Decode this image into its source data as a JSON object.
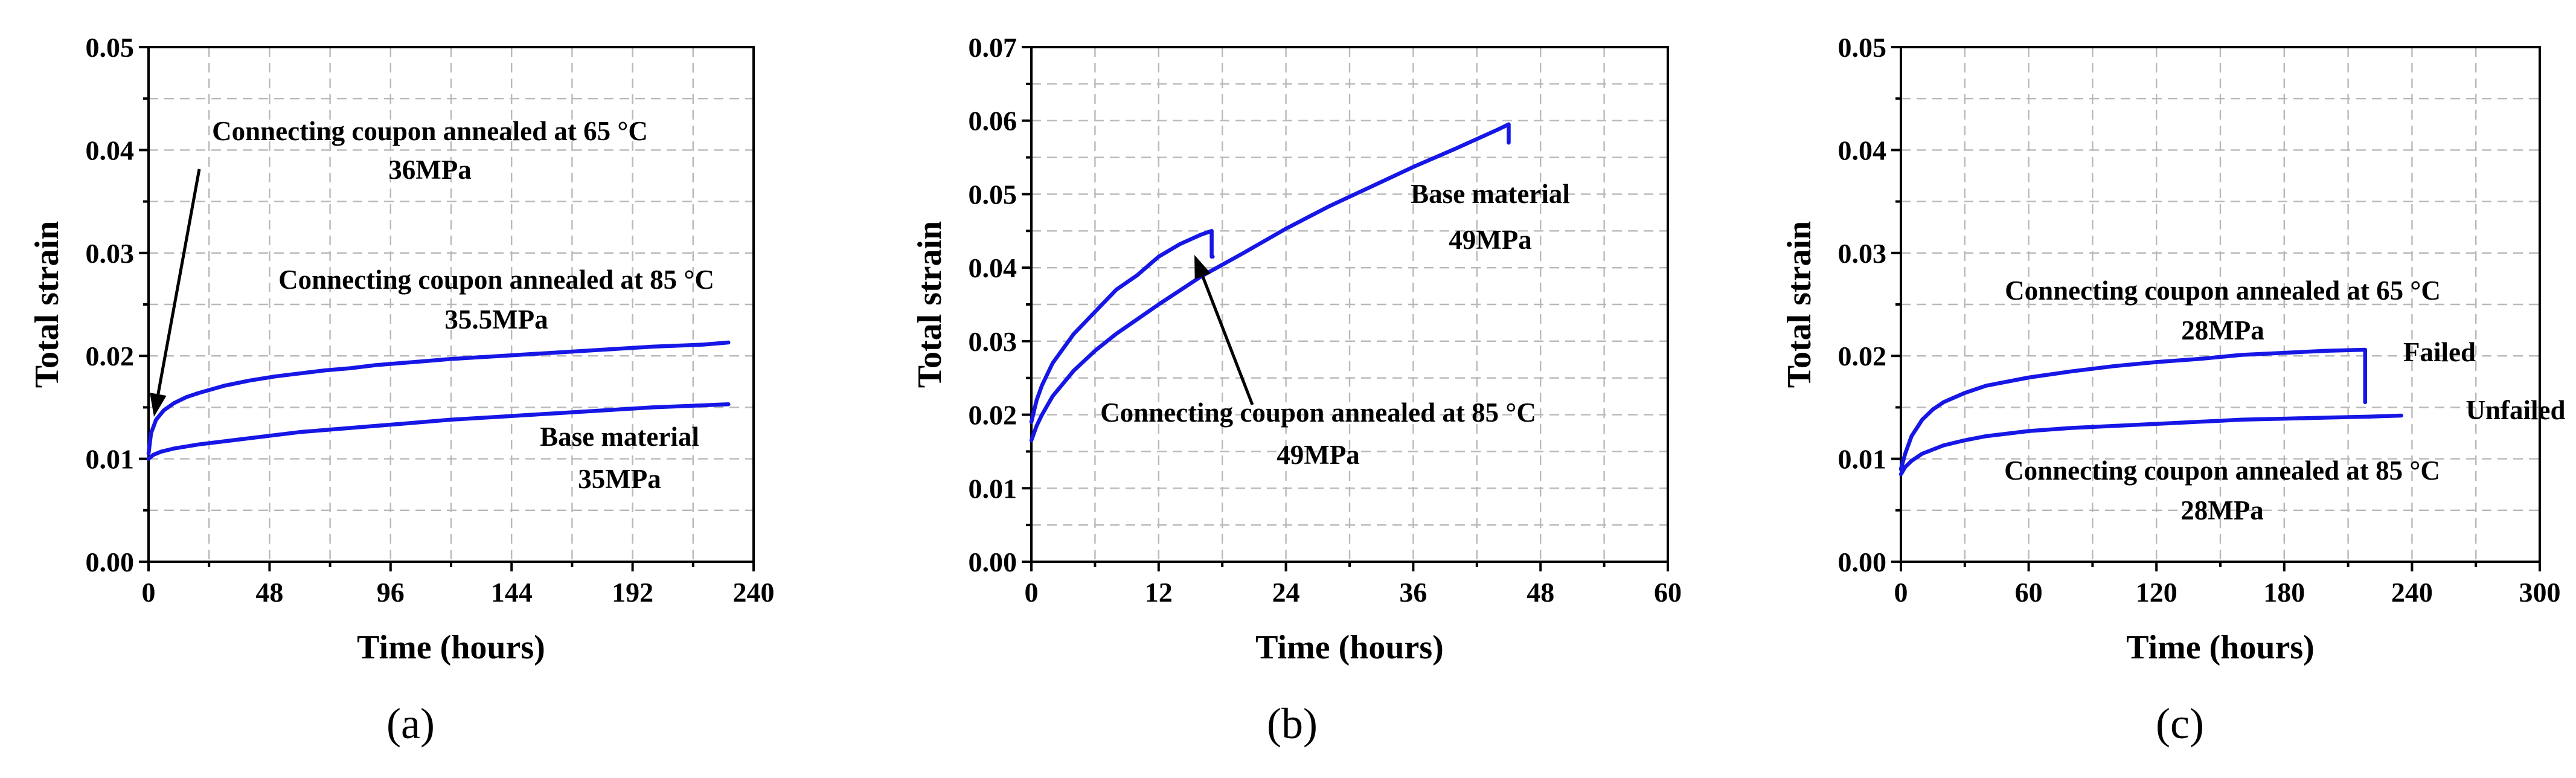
{
  "chart_data": [
    {
      "type": "line",
      "panel_label": "(a)",
      "xlabel": "Time (hours)",
      "ylabel": "Total strain",
      "xlim": [
        0,
        240
      ],
      "ylim": [
        0,
        0.05
      ],
      "xticks": [
        0,
        48,
        96,
        144,
        192,
        240
      ],
      "yticks": [
        0.0,
        0.01,
        0.02,
        0.03,
        0.04,
        0.05
      ],
      "ytick_labels": [
        "0.00",
        "0.01",
        "0.02",
        "0.03",
        "0.04",
        "0.05"
      ],
      "series": [
        {
          "name": "Connecting coupon annealed at 85 °C",
          "x": [
            0,
            1,
            3,
            6,
            10,
            15,
            20,
            30,
            40,
            50,
            60,
            70,
            80,
            90,
            100,
            110,
            120,
            140,
            160,
            180,
            200,
            220,
            230
          ],
          "y": [
            0.0105,
            0.0125,
            0.0138,
            0.0147,
            0.0154,
            0.016,
            0.0164,
            0.0171,
            0.0176,
            0.018,
            0.0183,
            0.0186,
            0.0188,
            0.0191,
            0.0193,
            0.0195,
            0.0197,
            0.02,
            0.0203,
            0.0206,
            0.0209,
            0.0211,
            0.0213
          ]
        },
        {
          "name": "Base material",
          "x": [
            0,
            2,
            5,
            10,
            20,
            30,
            40,
            60,
            80,
            100,
            120,
            140,
            160,
            180,
            200,
            220,
            230
          ],
          "y": [
            0.01,
            0.0104,
            0.0107,
            0.011,
            0.0114,
            0.0117,
            0.012,
            0.0126,
            0.013,
            0.0134,
            0.0138,
            0.0141,
            0.0144,
            0.0147,
            0.015,
            0.0152,
            0.0153
          ]
        }
      ],
      "annotations": [
        {
          "lines": [
            "Connecting coupon annealed at 65 °C",
            "36MPa"
          ],
          "arrow": true
        },
        {
          "lines": [
            "Connecting coupon annealed at 85 °C",
            "35.5MPa"
          ]
        },
        {
          "lines": [
            "Base material",
            "35MPa"
          ]
        }
      ]
    },
    {
      "type": "line",
      "panel_label": "(b)",
      "xlabel": "Time (hours)",
      "ylabel": "Total strain",
      "xlim": [
        0,
        60
      ],
      "ylim": [
        0,
        0.07
      ],
      "xticks": [
        0,
        12,
        24,
        36,
        48,
        60
      ],
      "yticks": [
        0.0,
        0.01,
        0.02,
        0.03,
        0.04,
        0.05,
        0.06,
        0.07
      ],
      "ytick_labels": [
        "0.00",
        "0.01",
        "0.02",
        "0.03",
        "0.04",
        "0.05",
        "0.06",
        "0.07"
      ],
      "series": [
        {
          "name": "Connecting coupon annealed at 85 °C",
          "x": [
            0,
            0.5,
            1,
            2,
            3,
            4,
            6,
            8,
            10,
            12,
            14,
            16,
            17,
            17,
            17.1
          ],
          "y": [
            0.019,
            0.022,
            0.024,
            0.027,
            0.029,
            0.031,
            0.034,
            0.037,
            0.039,
            0.0415,
            0.0432,
            0.0445,
            0.045,
            0.0415,
            0.0415
          ]
        },
        {
          "name": "Base material",
          "x": [
            0,
            0.5,
            1,
            2,
            4,
            6,
            8,
            12,
            16,
            20,
            24,
            28,
            32,
            36,
            40,
            44,
            45,
            45
          ],
          "y": [
            0.0165,
            0.0185,
            0.02,
            0.0225,
            0.026,
            0.0287,
            0.031,
            0.035,
            0.0388,
            0.042,
            0.0453,
            0.0483,
            0.051,
            0.0537,
            0.0562,
            0.0588,
            0.0595,
            0.057
          ]
        }
      ],
      "annotations": [
        {
          "lines": [
            "Base material",
            "49MPa"
          ]
        },
        {
          "lines": [
            "Connecting coupon annealed at 85 °C",
            "49MPa"
          ],
          "arrow": true
        }
      ]
    },
    {
      "type": "line",
      "panel_label": "(c)",
      "xlabel": "Time (hours)",
      "ylabel": "Total strain",
      "xlim": [
        0,
        300
      ],
      "ylim": [
        0,
        0.05
      ],
      "xticks": [
        0,
        60,
        120,
        180,
        240,
        300
      ],
      "yticks": [
        0.0,
        0.01,
        0.02,
        0.03,
        0.04,
        0.05
      ],
      "ytick_labels": [
        "0.00",
        "0.01",
        "0.02",
        "0.03",
        "0.04",
        "0.05"
      ],
      "series": [
        {
          "name": "Connecting coupon annealed at 65 °C",
          "x": [
            0,
            2,
            5,
            10,
            15,
            20,
            30,
            40,
            60,
            80,
            100,
            120,
            140,
            160,
            180,
            200,
            218,
            218
          ],
          "y": [
            0.009,
            0.0105,
            0.0122,
            0.0138,
            0.0148,
            0.0155,
            0.0164,
            0.0171,
            0.0179,
            0.0185,
            0.019,
            0.0194,
            0.0197,
            0.0201,
            0.0203,
            0.0205,
            0.0206,
            0.0155
          ]
        },
        {
          "name": "Connecting coupon annealed at 85 °C",
          "x": [
            0,
            2,
            5,
            10,
            20,
            30,
            40,
            60,
            80,
            100,
            120,
            140,
            160,
            180,
            200,
            220,
            235
          ],
          "y": [
            0.0085,
            0.0092,
            0.0098,
            0.0105,
            0.0113,
            0.0118,
            0.0122,
            0.0127,
            0.013,
            0.0132,
            0.0134,
            0.0136,
            0.0138,
            0.0139,
            0.014,
            0.0141,
            0.0142
          ]
        }
      ],
      "annotations": [
        {
          "lines": [
            "Connecting coupon annealed at 65 °C",
            "28MPa"
          ]
        },
        {
          "lines": [
            "Failed"
          ]
        },
        {
          "lines": [
            "Unfailed"
          ]
        },
        {
          "lines": [
            "Connecting coupon annealed at 85 °C",
            "28MPa"
          ]
        }
      ]
    }
  ]
}
